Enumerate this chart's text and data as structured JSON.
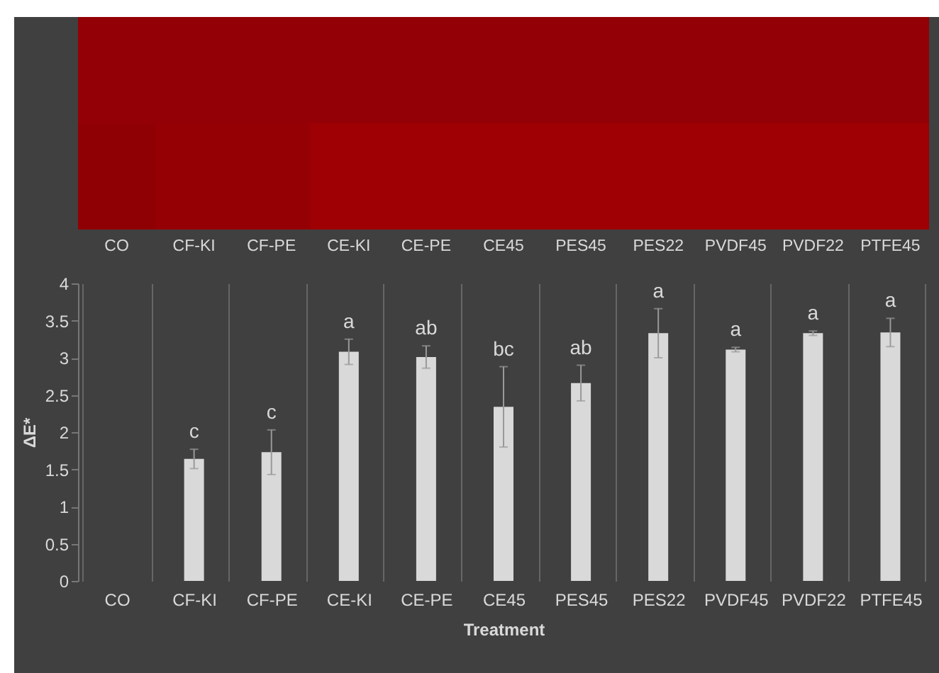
{
  "chart_data": {
    "type": "bar",
    "xlabel": "Treatment",
    "ylabel": "ΔE*",
    "categories": [
      "CO",
      "CF-KI",
      "CF-PE",
      "CE-KI",
      "CE-PE",
      "CE45",
      "PES45",
      "PES22",
      "PVDF45",
      "PVDF22",
      "PTFE45"
    ],
    "values": [
      null,
      1.64,
      1.73,
      3.08,
      3.01,
      2.34,
      2.66,
      3.33,
      3.11,
      3.33,
      3.34
    ],
    "errors": [
      null,
      0.13,
      0.3,
      0.17,
      0.15,
      0.54,
      0.24,
      0.33,
      0.03,
      0.03,
      0.19
    ],
    "value_labels": [
      null,
      "c",
      "c",
      "a",
      "ab",
      "bc",
      "ab",
      "a",
      "a",
      "a",
      "a"
    ],
    "color": "#d9d9d9",
    "ylim": [
      0,
      4
    ],
    "yticks": [
      0,
      0.5,
      1,
      1.5,
      2,
      2.5,
      3,
      3.5,
      4
    ],
    "grid": "x"
  }
}
